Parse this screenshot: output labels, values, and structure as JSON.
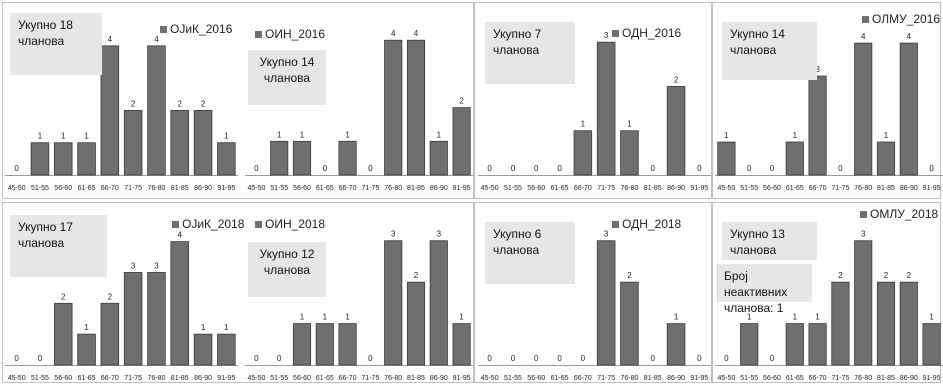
{
  "chart_data": [
    {
      "type": "bar",
      "series": [
        {
          "name": "ОЈиК_2016"
        }
      ],
      "categories": [
        "45-50",
        "51-55",
        "56-60",
        "61-65",
        "66-70",
        "71-75",
        "76-80",
        "81-85",
        "86-90",
        "91-95"
      ],
      "values": [
        0,
        1,
        1,
        1,
        4,
        2,
        4,
        2,
        2,
        1
      ],
      "ylim": [
        0,
        4.8
      ],
      "notes": [
        {
          "lines": [
            "Укупно 18",
            "чланова"
          ]
        }
      ]
    },
    {
      "type": "bar",
      "series": [
        {
          "name": "ОИН_2016"
        }
      ],
      "categories": [
        "45-50",
        "51-55",
        "56-60",
        "61-65",
        "66-70",
        "71-75",
        "76-80",
        "81-85",
        "86-90",
        "91-95"
      ],
      "values": [
        0,
        1,
        1,
        0,
        1,
        0,
        4,
        4,
        1,
        2
      ],
      "ylim": [
        0,
        4.6
      ],
      "notes": [
        {
          "lines": [
            "Укупно 14",
            "чланова"
          ]
        }
      ]
    },
    {
      "type": "bar",
      "series": [
        {
          "name": "ОДН_2016"
        }
      ],
      "categories": [
        "45-50",
        "51-55",
        "56-60",
        "61-65",
        "66-70",
        "71-75",
        "76-80",
        "81-85",
        "86-90",
        "91-95"
      ],
      "values": [
        0,
        0,
        0,
        0,
        1,
        3,
        1,
        0,
        2,
        0
      ],
      "ylim": [
        0,
        3.5
      ],
      "notes": [
        {
          "lines": [
            "Укупно 7",
            "чланова"
          ]
        }
      ]
    },
    {
      "type": "bar",
      "series": [
        {
          "name": "ОЛМУ_2016"
        }
      ],
      "categories": [
        "45-50",
        "51-55",
        "56-60",
        "61-65",
        "66-70",
        "71-75",
        "76-80",
        "81-85",
        "86-90",
        "91-95"
      ],
      "values": [
        1,
        0,
        0,
        1,
        3,
        0,
        4,
        1,
        4,
        0
      ],
      "ylim": [
        0,
        4.7
      ],
      "notes": [
        {
          "lines": [
            "Укупно 14",
            "чланова"
          ]
        }
      ]
    },
    {
      "type": "bar",
      "series": [
        {
          "name": "ОЈиК_2018"
        }
      ],
      "categories": [
        "45-50",
        "51-55",
        "56-60",
        "61-65",
        "66-70",
        "71-75",
        "76-80",
        "81-85",
        "86-90",
        "91-95"
      ],
      "values": [
        0,
        0,
        2,
        1,
        2,
        3,
        3,
        4,
        1,
        1
      ],
      "ylim": [
        0,
        4.7
      ],
      "notes": [
        {
          "lines": [
            "Укупно 17",
            "чланова"
          ]
        }
      ]
    },
    {
      "type": "bar",
      "series": [
        {
          "name": "ОИН_2018"
        }
      ],
      "categories": [
        "45-50",
        "51-55",
        "56-60",
        "61-65",
        "66-70",
        "71-75",
        "76-80",
        "81-85",
        "86-90",
        "91-95"
      ],
      "values": [
        0,
        0,
        1,
        1,
        1,
        0,
        3,
        2,
        3,
        1
      ],
      "ylim": [
        0,
        3.5
      ],
      "notes": [
        {
          "lines": [
            "Укупно 12",
            "чланова"
          ]
        }
      ]
    },
    {
      "type": "bar",
      "series": [
        {
          "name": "ОДН_2018"
        }
      ],
      "categories": [
        "45-50",
        "51-55",
        "56-60",
        "61-65",
        "66-70",
        "71-75",
        "76-80",
        "81-85",
        "86-90",
        "91-95"
      ],
      "values": [
        0,
        0,
        0,
        0,
        0,
        3,
        2,
        0,
        1,
        0
      ],
      "ylim": [
        0,
        3.5
      ],
      "notes": [
        {
          "lines": [
            "Укупно 6",
            "чланова"
          ]
        }
      ]
    },
    {
      "type": "bar",
      "series": [
        {
          "name": "ОМЛУ_2018"
        }
      ],
      "categories": [
        "45-50",
        "51-55",
        "56-60",
        "61-65",
        "66-70",
        "71-75",
        "76-80",
        "81-85",
        "86-90",
        "91-95"
      ],
      "values": [
        0,
        1,
        0,
        1,
        1,
        2,
        3,
        2,
        2,
        1
      ],
      "ylim": [
        0,
        3.5
      ],
      "notes": [
        {
          "lines": [
            "Укупно 13",
            "чланова"
          ]
        },
        {
          "lines": [
            "Број неактивних",
            "чланова: 1"
          ]
        }
      ]
    }
  ],
  "colors": {
    "bar_fill": "#6f6f6f",
    "bar_stroke": "#3a3a3a",
    "axis": "#9a9a9a",
    "note_bg": "#e6e6e6"
  }
}
